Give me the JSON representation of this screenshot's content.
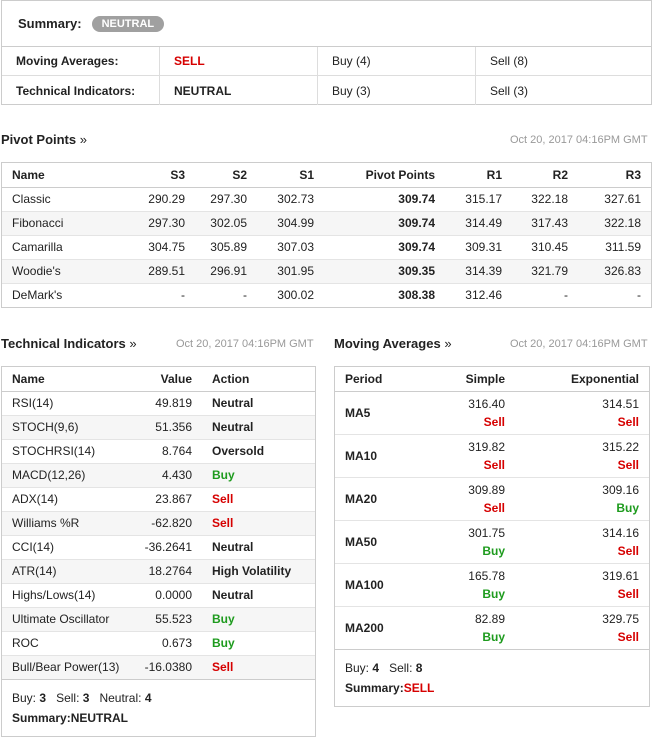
{
  "summary": {
    "label": "Summary:",
    "badge": "NEUTRAL",
    "rows": [
      {
        "name": "Moving Averages:",
        "value": "SELL",
        "buy": "Buy (4)",
        "sell": "Sell (8)"
      },
      {
        "name": "Technical Indicators:",
        "value": "NEUTRAL",
        "buy": "Buy (3)",
        "sell": "Sell (3)"
      }
    ]
  },
  "pivot": {
    "title": "Pivot Points",
    "arrow": "»",
    "date": "Oct 20, 2017 04:16PM GMT",
    "headers": [
      "Name",
      "S3",
      "S2",
      "S1",
      "Pivot Points",
      "R1",
      "R2",
      "R3"
    ],
    "rows": [
      [
        "Classic",
        "290.29",
        "297.30",
        "302.73",
        "309.74",
        "315.17",
        "322.18",
        "327.61"
      ],
      [
        "Fibonacci",
        "297.30",
        "302.05",
        "304.99",
        "309.74",
        "314.49",
        "317.43",
        "322.18"
      ],
      [
        "Camarilla",
        "304.75",
        "305.89",
        "307.03",
        "309.74",
        "309.31",
        "310.45",
        "311.59"
      ],
      [
        "Woodie's",
        "289.51",
        "296.91",
        "301.95",
        "309.35",
        "314.39",
        "321.79",
        "326.83"
      ],
      [
        "DeMark's",
        "-",
        "-",
        "300.02",
        "308.38",
        "312.46",
        "-",
        "-"
      ]
    ]
  },
  "technical": {
    "title": "Technical Indicators",
    "arrow": "»",
    "date": "Oct 20, 2017 04:16PM GMT",
    "headers": [
      "Name",
      "Value",
      "Action"
    ],
    "rows": [
      {
        "name": "RSI(14)",
        "value": "49.819",
        "action": "Neutral",
        "type": "neutral"
      },
      {
        "name": "STOCH(9,6)",
        "value": "51.356",
        "action": "Neutral",
        "type": "neutral"
      },
      {
        "name": "STOCHRSI(14)",
        "value": "8.764",
        "action": "Oversold",
        "type": "neutral"
      },
      {
        "name": "MACD(12,26)",
        "value": "4.430",
        "action": "Buy",
        "type": "buy"
      },
      {
        "name": "ADX(14)",
        "value": "23.867",
        "action": "Sell",
        "type": "sell"
      },
      {
        "name": "Williams %R",
        "value": "-62.820",
        "action": "Sell",
        "type": "sell"
      },
      {
        "name": "CCI(14)",
        "value": "-36.2641",
        "action": "Neutral",
        "type": "neutral"
      },
      {
        "name": "ATR(14)",
        "value": "18.2764",
        "action": "High Volatility",
        "type": "neutral"
      },
      {
        "name": "Highs/Lows(14)",
        "value": "0.0000",
        "action": "Neutral",
        "type": "neutral"
      },
      {
        "name": "Ultimate Oscillator",
        "value": "55.523",
        "action": "Buy",
        "type": "buy"
      },
      {
        "name": "ROC",
        "value": "0.673",
        "action": "Buy",
        "type": "buy"
      },
      {
        "name": "Bull/Bear Power(13)",
        "value": "-16.0380",
        "action": "Sell",
        "type": "sell"
      }
    ],
    "footer": {
      "buy_label": "Buy:",
      "buy": "3",
      "sell_label": "Sell:",
      "sell": "3",
      "neutral_label": "Neutral:",
      "neutral": "4",
      "summary_label": "Summary:",
      "summary": "NEUTRAL"
    }
  },
  "moving": {
    "title": "Moving Averages",
    "arrow": "»",
    "date": "Oct 20, 2017 04:16PM GMT",
    "headers": [
      "Period",
      "Simple",
      "Exponential"
    ],
    "rows": [
      {
        "period": "MA5",
        "simple": "316.40",
        "simple_action": "Sell",
        "exp": "314.51",
        "exp_action": "Sell"
      },
      {
        "period": "MA10",
        "simple": "319.82",
        "simple_action": "Sell",
        "exp": "315.22",
        "exp_action": "Sell"
      },
      {
        "period": "MA20",
        "simple": "309.89",
        "simple_action": "Sell",
        "exp": "309.16",
        "exp_action": "Buy"
      },
      {
        "period": "MA50",
        "simple": "301.75",
        "simple_action": "Buy",
        "exp": "314.16",
        "exp_action": "Sell"
      },
      {
        "period": "MA100",
        "simple": "165.78",
        "simple_action": "Buy",
        "exp": "319.61",
        "exp_action": "Sell"
      },
      {
        "period": "MA200",
        "simple": "82.89",
        "simple_action": "Buy",
        "exp": "329.75",
        "exp_action": "Sell"
      }
    ],
    "footer": {
      "buy_label": "Buy:",
      "buy": "4",
      "sell_label": "Sell:",
      "sell": "8",
      "summary_label": "Summary:",
      "summary": "SELL"
    }
  },
  "colors": {
    "sell": "#d60000",
    "buy": "#1e9b1e",
    "badge": "#a0a0a0"
  }
}
